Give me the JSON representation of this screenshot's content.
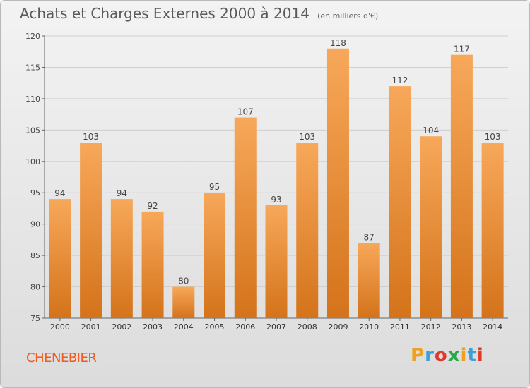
{
  "chart_data": {
    "type": "bar",
    "title": "Achats et Charges Externes 2000 à 2014",
    "subtitle": "(en milliers d'€)",
    "categories": [
      "2000",
      "2001",
      "2002",
      "2003",
      "2004",
      "2005",
      "2006",
      "2007",
      "2008",
      "2009",
      "2010",
      "2011",
      "2012",
      "2013",
      "2014"
    ],
    "values": [
      94,
      103,
      94,
      92,
      80,
      95,
      107,
      93,
      103,
      118,
      87,
      112,
      104,
      117,
      103
    ],
    "ylim": [
      75,
      120
    ],
    "yticks": [
      75,
      80,
      85,
      90,
      95,
      100,
      105,
      110,
      115,
      120
    ],
    "grid": true,
    "xlabel": "",
    "ylabel": "",
    "bar_color_top": "#f7a85a",
    "bar_color_bottom": "#d4731a"
  },
  "footer": {
    "commune": "CHENEBIER",
    "brand": "Proxiti"
  },
  "colors": {
    "commune_text": "#f05a1a",
    "brand_letters": [
      "#f0a020",
      "#3aa0d8",
      "#e03a2a",
      "#2aa84a",
      "#f0a020",
      "#3aa0d8",
      "#e03a2a"
    ]
  }
}
